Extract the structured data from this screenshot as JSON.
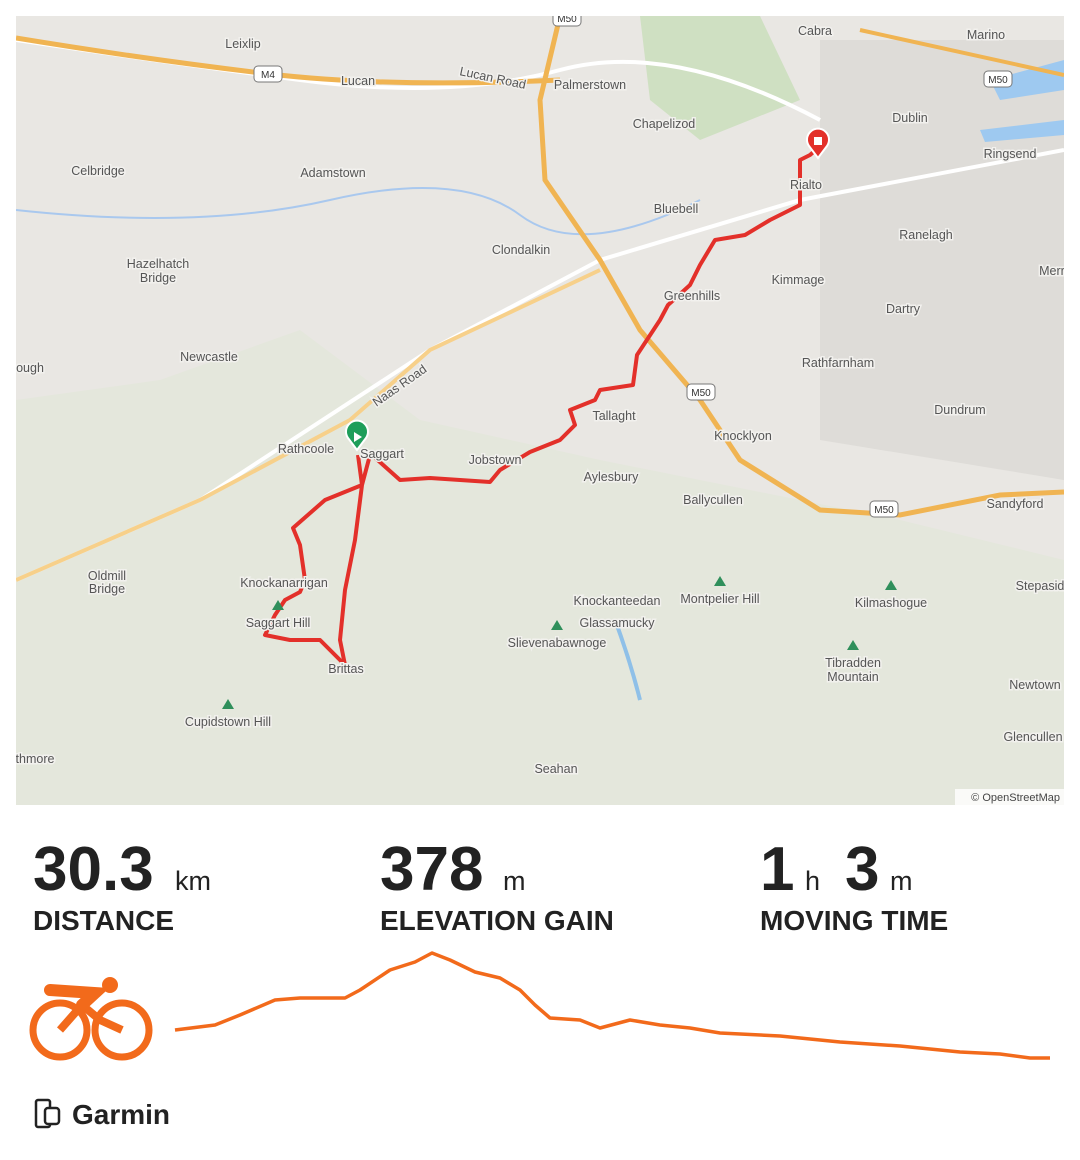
{
  "map": {
    "labels": [
      "Leixlip",
      "Lucan",
      "Lucan Road",
      "Palmerstown",
      "Cabra",
      "Marino",
      "Dublin",
      "Chapelizod",
      "Ringsend",
      "Celbridge",
      "Adamstown",
      "Rialto",
      "Bluebell",
      "Ranelagh",
      "Clondalkin",
      "Hazelhatch",
      "Bridge",
      "Greenhills",
      "Kimmage",
      "Merr",
      "Dartry",
      "Newcastle",
      "Naas Road",
      "Rathfarnham",
      "ough",
      "Tallaght",
      "Dundrum",
      "Knocklyon",
      "Rathcoole",
      "Saggart",
      "Jobstown",
      "Aylesbury",
      "Ballycullen",
      "Sandyford",
      "Stepasid",
      "Oldmill",
      "Bridge",
      "Knockanarrigan",
      "Saggart Hill",
      "Knockanteedan",
      "Montpelier Hill",
      "Kilmashogue",
      "Glassamucky",
      "Slievenabawnoge",
      "Tibradden",
      "Mountain",
      "Brittas",
      "Newtown",
      "Cupidstown Hill",
      "Glencullen",
      "thmore",
      "Seahan"
    ],
    "shields": [
      "M50",
      "M4",
      "M50",
      "M50",
      "M50"
    ],
    "attribution": "© OpenStreetMap"
  },
  "stats": [
    {
      "value": "30.3",
      "unit": "km",
      "label": "DISTANCE"
    },
    {
      "value": "378",
      "unit": "m",
      "label": "ELEVATION GAIN"
    },
    {
      "value": "1",
      "unit": "h",
      "value2": "3",
      "unit2": "m",
      "label": "MOVING TIME"
    }
  ],
  "source": "Garmin"
}
